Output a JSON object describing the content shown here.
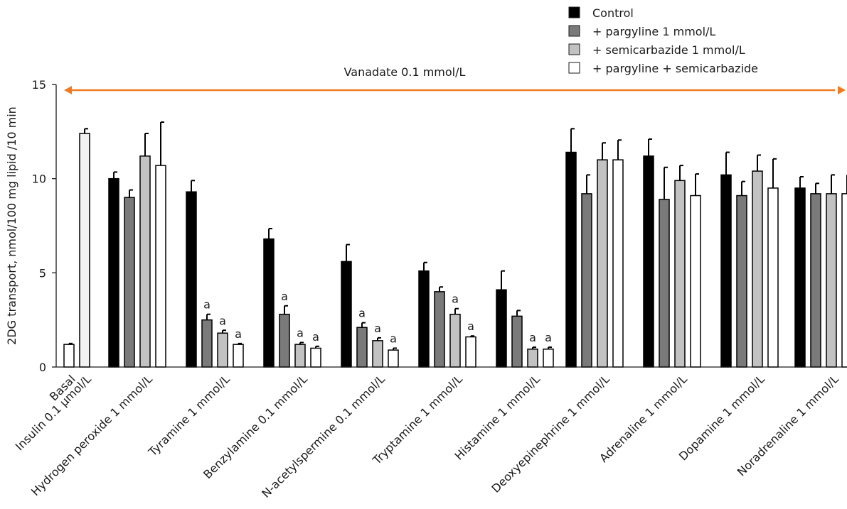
{
  "chart_data": {
    "type": "bar",
    "ylabel": "2DG transport, nmol/100 mg lipid /10 min",
    "ylim": [
      0,
      15
    ],
    "yticks": [
      0,
      5,
      10,
      15
    ],
    "annotation": "Vanadate 0.1 mmol/L",
    "annotation_color": "#f07a22",
    "legend_position": "top-right",
    "series": [
      {
        "name": "Control",
        "color": "#000000"
      },
      {
        "name": "+ pargyline 1 mmol/L",
        "color": "#7a7a7a"
      },
      {
        "name": "+ semicarbazide 1 mmol/L",
        "color": "#c2c2c2"
      },
      {
        "name": "+ pargyline + semicarbazide",
        "color": "#ffffff"
      }
    ],
    "groups": [
      {
        "categories": [
          "Basal",
          "Insulin 0.1 μmol/L"
        ],
        "bars": [
          {
            "value": 1.2,
            "error": 0.05,
            "color": "#ffffff",
            "mark": ""
          },
          {
            "value": 12.4,
            "error": 0.25,
            "color": "#f2f2f2",
            "mark": ""
          }
        ]
      },
      {
        "categories": [
          "Hydrogen peroxide 1 mmol/L"
        ],
        "bars": [
          {
            "series": 0,
            "value": 10.0,
            "error": 0.35,
            "mark": ""
          },
          {
            "series": 1,
            "value": 9.0,
            "error": 0.4,
            "mark": ""
          },
          {
            "series": 2,
            "value": 11.2,
            "error": 1.2,
            "mark": ""
          },
          {
            "series": 3,
            "value": 10.7,
            "error": 2.3,
            "mark": ""
          }
        ]
      },
      {
        "categories": [
          "Tyramine 1 mmol/L"
        ],
        "bars": [
          {
            "series": 0,
            "value": 9.3,
            "error": 0.6,
            "mark": ""
          },
          {
            "series": 1,
            "value": 2.5,
            "error": 0.3,
            "mark": "a"
          },
          {
            "series": 2,
            "value": 1.8,
            "error": 0.15,
            "mark": "a"
          },
          {
            "series": 3,
            "value": 1.2,
            "error": 0.05,
            "mark": "a"
          }
        ]
      },
      {
        "categories": [
          "Benzylamine 0.1 mmol/L"
        ],
        "bars": [
          {
            "series": 0,
            "value": 6.8,
            "error": 0.55,
            "mark": ""
          },
          {
            "series": 1,
            "value": 2.8,
            "error": 0.45,
            "mark": "a"
          },
          {
            "series": 2,
            "value": 1.2,
            "error": 0.1,
            "mark": "a"
          },
          {
            "series": 3,
            "value": 1.0,
            "error": 0.1,
            "mark": "a"
          }
        ]
      },
      {
        "categories": [
          "N-acetylspermine 0.1 mmol/L"
        ],
        "bars": [
          {
            "series": 0,
            "value": 5.6,
            "error": 0.9,
            "mark": ""
          },
          {
            "series": 1,
            "value": 2.1,
            "error": 0.25,
            "mark": "a"
          },
          {
            "series": 2,
            "value": 1.4,
            "error": 0.15,
            "mark": "a"
          },
          {
            "series": 3,
            "value": 0.9,
            "error": 0.1,
            "mark": "a"
          }
        ]
      },
      {
        "categories": [
          "Tryptamine 1 mmol/L"
        ],
        "bars": [
          {
            "series": 0,
            "value": 5.1,
            "error": 0.45,
            "mark": ""
          },
          {
            "series": 1,
            "value": 4.0,
            "error": 0.25,
            "mark": ""
          },
          {
            "series": 2,
            "value": 2.8,
            "error": 0.3,
            "mark": "a"
          },
          {
            "series": 3,
            "value": 1.6,
            "error": 0.05,
            "mark": "a"
          }
        ]
      },
      {
        "categories": [
          "Histamine 1 mmol/L"
        ],
        "bars": [
          {
            "series": 0,
            "value": 4.1,
            "error": 1.0,
            "mark": ""
          },
          {
            "series": 1,
            "value": 2.7,
            "error": 0.3,
            "mark": ""
          },
          {
            "series": 2,
            "value": 0.95,
            "error": 0.1,
            "mark": "a"
          },
          {
            "series": 3,
            "value": 0.95,
            "error": 0.1,
            "mark": "a"
          }
        ]
      },
      {
        "categories": [
          "Deoxyepinephrine 1 mmol/L"
        ],
        "bars": [
          {
            "series": 0,
            "value": 11.4,
            "error": 1.25,
            "mark": ""
          },
          {
            "series": 1,
            "value": 9.2,
            "error": 1.0,
            "mark": ""
          },
          {
            "series": 2,
            "value": 11.0,
            "error": 0.9,
            "mark": ""
          },
          {
            "series": 3,
            "value": 11.0,
            "error": 1.05,
            "mark": ""
          }
        ]
      },
      {
        "categories": [
          "Adrenaline 1 mmol/L"
        ],
        "bars": [
          {
            "series": 0,
            "value": 11.2,
            "error": 0.9,
            "mark": ""
          },
          {
            "series": 1,
            "value": 8.9,
            "error": 1.7,
            "mark": ""
          },
          {
            "series": 2,
            "value": 9.9,
            "error": 0.8,
            "mark": ""
          },
          {
            "series": 3,
            "value": 9.1,
            "error": 1.15,
            "mark": ""
          }
        ]
      },
      {
        "categories": [
          "Dopamine 1 mmol/L"
        ],
        "bars": [
          {
            "series": 0,
            "value": 10.2,
            "error": 1.2,
            "mark": ""
          },
          {
            "series": 1,
            "value": 9.1,
            "error": 0.75,
            "mark": ""
          },
          {
            "series": 2,
            "value": 10.4,
            "error": 0.85,
            "mark": ""
          },
          {
            "series": 3,
            "value": 9.5,
            "error": 1.55,
            "mark": ""
          }
        ]
      },
      {
        "categories": [
          "Noradrenaline 1 mmol/L"
        ],
        "bars": [
          {
            "series": 0,
            "value": 9.5,
            "error": 0.6,
            "mark": ""
          },
          {
            "series": 1,
            "value": 9.2,
            "error": 0.55,
            "mark": ""
          },
          {
            "series": 2,
            "value": 9.2,
            "error": 1.0,
            "mark": ""
          },
          {
            "series": 3,
            "value": 9.2,
            "error": 1.0,
            "mark": ""
          }
        ]
      }
    ]
  }
}
